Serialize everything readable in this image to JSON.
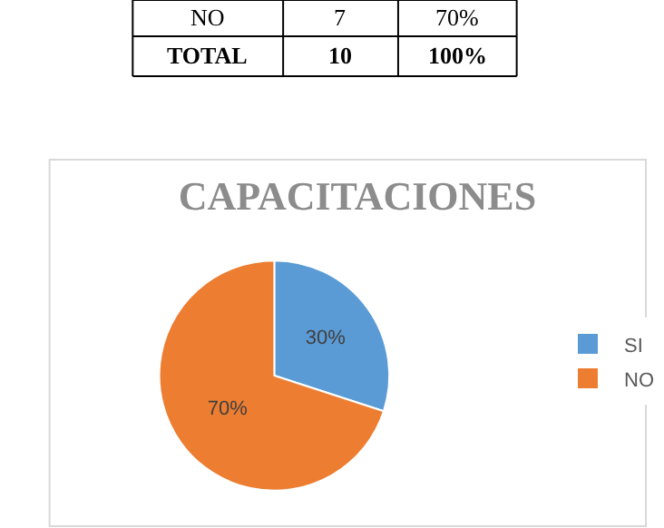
{
  "chart_data": {
    "type": "pie",
    "title": "CAPACITACIONES",
    "categories": [
      "SI",
      "NO"
    ],
    "values": [
      30,
      70
    ],
    "colors": [
      "#5b9bd5",
      "#ed7d31"
    ],
    "value_labels": [
      "30%",
      "70%"
    ],
    "legend": "right",
    "annotations": [
      "NO",
      "7",
      "70%",
      "TOTAL",
      "10",
      "100%"
    ]
  }
}
